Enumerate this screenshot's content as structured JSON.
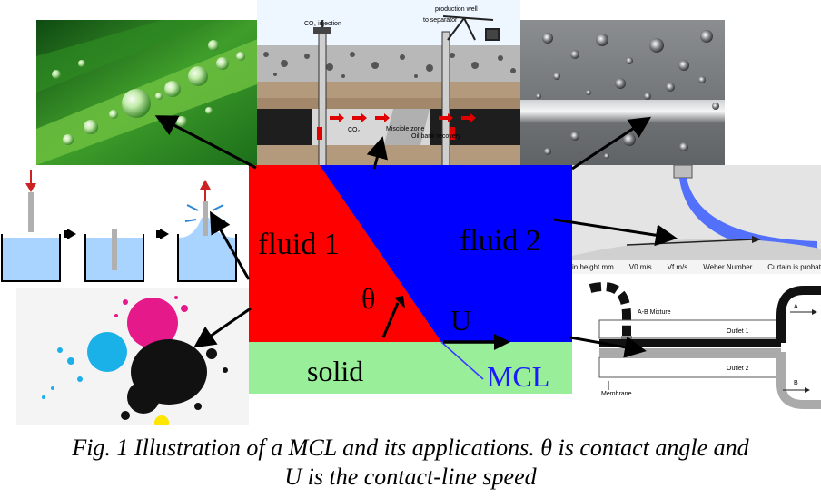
{
  "center": {
    "fluid1": "fluid 1",
    "fluid2": "fluid 2",
    "theta": "θ",
    "speed": "U",
    "solid": "solid",
    "mcl": "MCL"
  },
  "reservoir": {
    "injection": "CO₂ injection",
    "production_well": "production well",
    "to_separator": "to separator",
    "co2": "CO₂",
    "miscible_zone": "Miscible zone",
    "oil_bank": "Oil bank recovery"
  },
  "curtain": {
    "headers": [
      "in height mm",
      "V0 m/s",
      "Vf m/s",
      "Weber Number",
      "Curtain is probat"
    ]
  },
  "membrane": {
    "mixture": "A-B Mixture",
    "outlet1": "Outlet 1",
    "outlet2": "Outlet 2",
    "label": "Membrane",
    "a": "A",
    "b": "B"
  },
  "caption": {
    "line1": "Fig. 1 Illustration of a MCL and its applications. θ is contact angle and",
    "line2": "U is the contact-line speed"
  },
  "colors": {
    "fluid1": "#ff0000",
    "fluid2": "#0000ff",
    "solid": "#99ee99",
    "mcl_label": "#1a1aff"
  }
}
